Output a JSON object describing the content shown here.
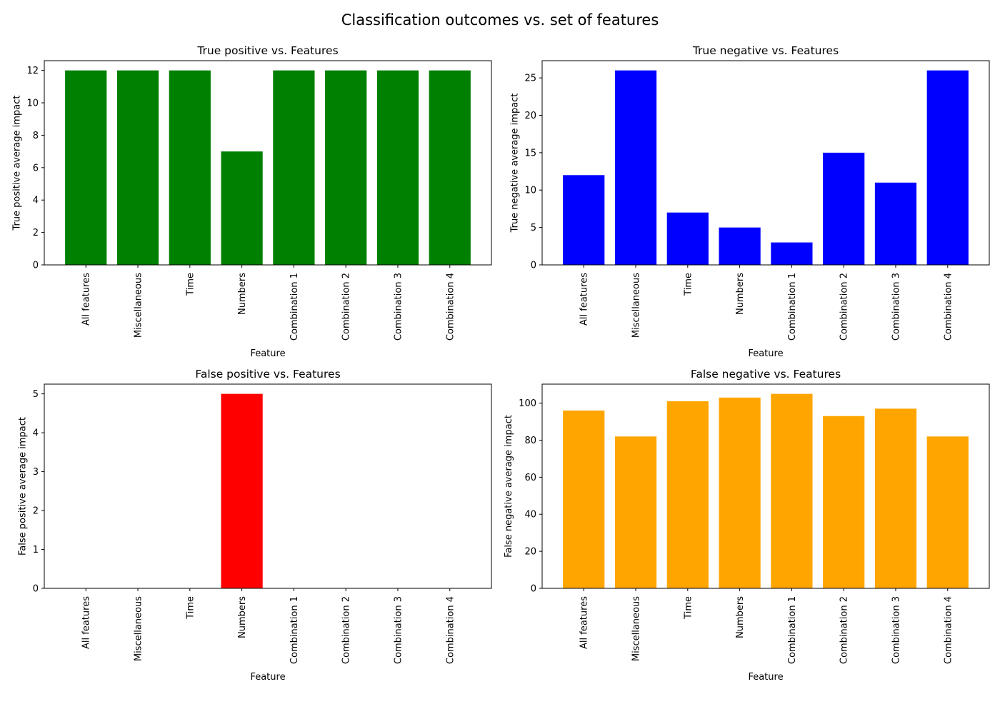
{
  "figure": {
    "title": "Classification outcomes vs. set of features"
  },
  "chart_data": [
    {
      "type": "bar",
      "title": "True positive vs. Features",
      "xlabel": "Feature",
      "ylabel": "True positive average impact",
      "categories": [
        "All features",
        "Miscellaneous",
        "Time",
        "Numbers",
        "Combination 1",
        "Combination 2",
        "Combination 3",
        "Combination 4"
      ],
      "values": [
        12,
        12,
        12,
        7,
        12,
        12,
        12,
        12
      ],
      "ylim": [
        0,
        12.6
      ],
      "yticks": [
        0,
        2,
        4,
        6,
        8,
        10,
        12
      ],
      "color": "#008000",
      "grid": false
    },
    {
      "type": "bar",
      "title": "True negative vs. Features",
      "xlabel": "Feature",
      "ylabel": "True negative average impact",
      "categories": [
        "All features",
        "Miscellaneous",
        "Time",
        "Numbers",
        "Combination 1",
        "Combination 2",
        "Combination 3",
        "Combination 4"
      ],
      "values": [
        12,
        26,
        7,
        5,
        3,
        15,
        11,
        26
      ],
      "ylim": [
        0,
        27.3
      ],
      "yticks": [
        0,
        5,
        10,
        15,
        20,
        25
      ],
      "color": "#0000ff",
      "grid": false
    },
    {
      "type": "bar",
      "title": "False positive vs. Features",
      "xlabel": "Feature",
      "ylabel": "False positive average impact",
      "categories": [
        "All features",
        "Miscellaneous",
        "Time",
        "Numbers",
        "Combination 1",
        "Combination 2",
        "Combination 3",
        "Combination 4"
      ],
      "values": [
        0,
        0,
        0,
        5,
        0,
        0,
        0,
        0
      ],
      "ylim": [
        0,
        5.25
      ],
      "yticks": [
        0,
        1,
        2,
        3,
        4,
        5
      ],
      "color": "#ff0000",
      "grid": false
    },
    {
      "type": "bar",
      "title": "False negative vs. Features",
      "xlabel": "Feature",
      "ylabel": "False negative average impact",
      "categories": [
        "All features",
        "Miscellaneous",
        "Time",
        "Numbers",
        "Combination 1",
        "Combination 2",
        "Combination 3",
        "Combination 4"
      ],
      "values": [
        96,
        82,
        101,
        103,
        105,
        93,
        97,
        82
      ],
      "ylim": [
        0,
        110.25
      ],
      "yticks": [
        0,
        20,
        40,
        60,
        80,
        100
      ],
      "color": "#ffa500",
      "grid": false
    }
  ]
}
